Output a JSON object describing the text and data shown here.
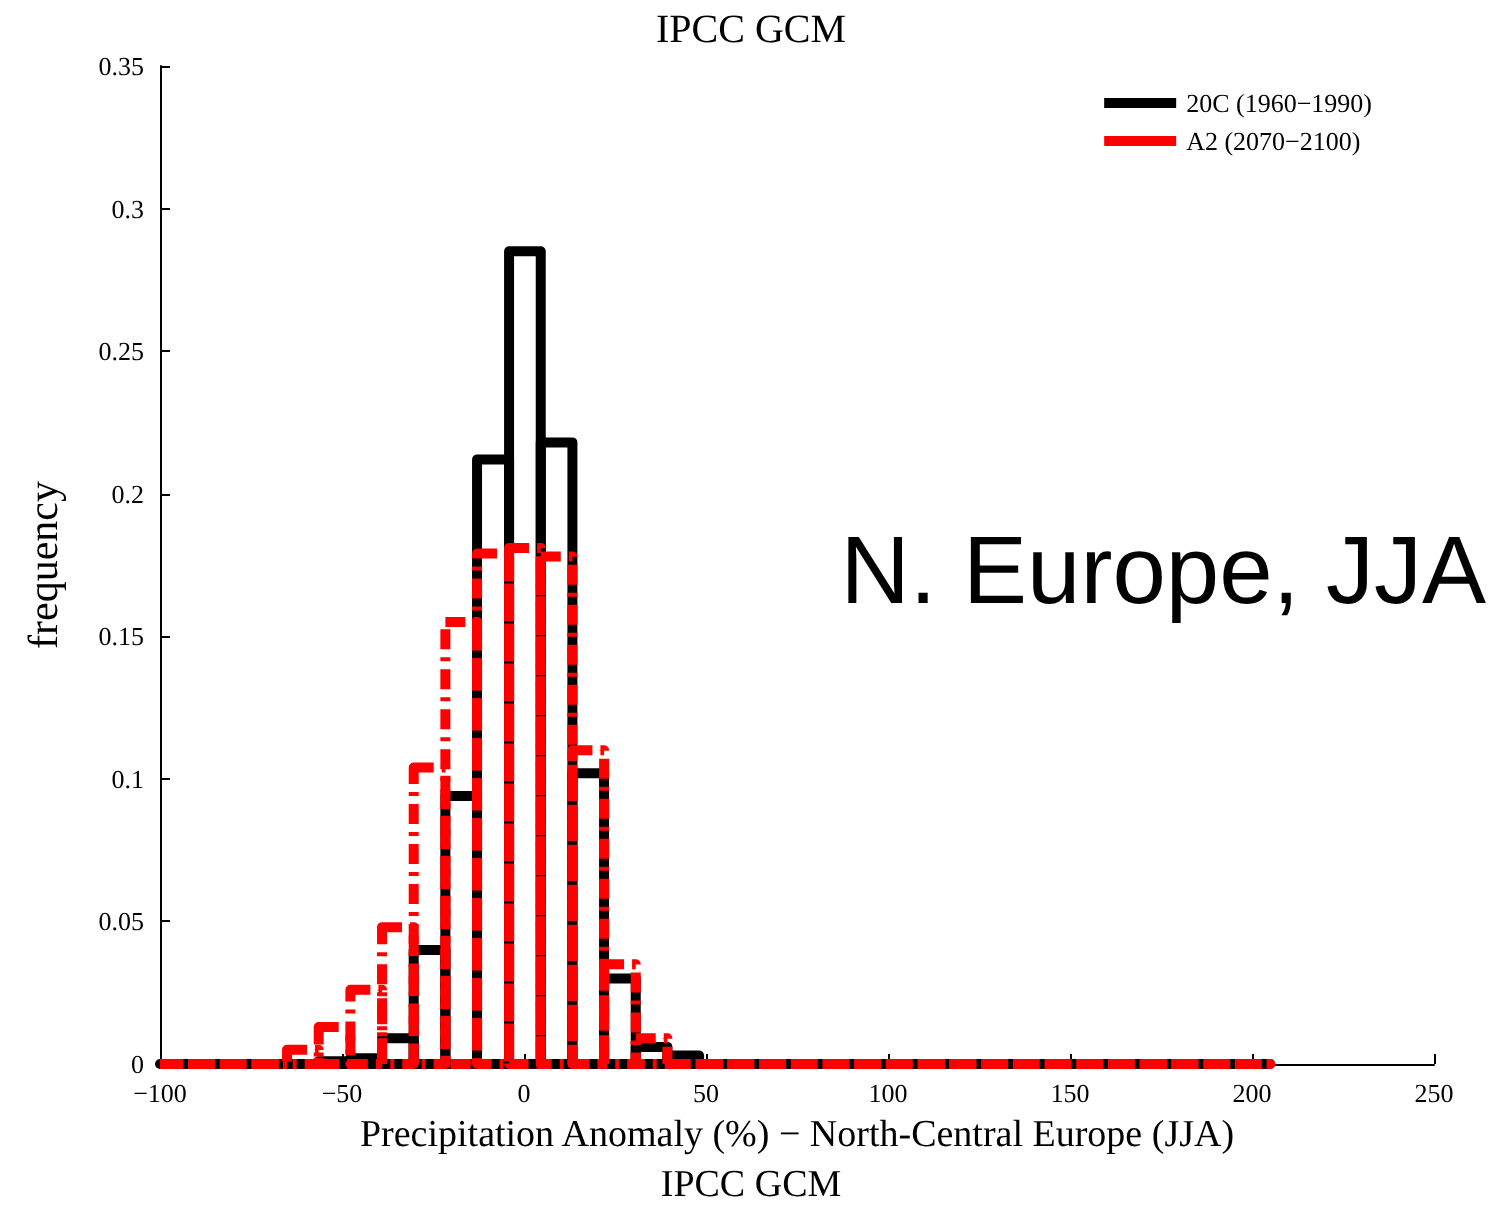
{
  "chart_data": {
    "type": "histogram",
    "title": "IPCC GCM",
    "xlabel": "Precipitation Anomaly (%) − North-Central Europe (JJA)",
    "ylabel": "frequency",
    "annotations": [
      "N. Europe, JJA",
      "IPCC GCM"
    ],
    "bins": [
      -100,
      -91.3,
      -82.6,
      -73.9,
      -65.1,
      -56.4,
      -47.7,
      -39.0,
      -30.3,
      -21.6,
      -12.9,
      -4.1,
      4.6,
      13.3,
      22.0,
      30.7,
      39.4,
      48.1,
      56.9,
      65.6,
      74.3,
      83.0,
      91.7,
      100.4,
      109.1,
      117.9,
      126.6,
      135.3,
      144.0,
      152.7,
      161.4,
      170.1,
      178.9,
      187.6,
      196.3,
      205
    ],
    "series": [
      {
        "name": "20C (1960−1990)",
        "color": "#000000",
        "line_style": "solid",
        "values": [
          0,
          0,
          0,
          0,
          0,
          0.001,
          0.002,
          0.009,
          0.04,
          0.094,
          0.212,
          0.285,
          0.218,
          0.102,
          0.03,
          0.006,
          0.003,
          0,
          0,
          0,
          0,
          0,
          0,
          0,
          0,
          0,
          0,
          0,
          0,
          0,
          0,
          0,
          0,
          0,
          0
        ]
      },
      {
        "name": "A2 (2070−2100)",
        "color": "#ff0000",
        "line_style": "dashed",
        "values": [
          0,
          0,
          0,
          0,
          0.005,
          0.013,
          0.026,
          0.048,
          0.104,
          0.155,
          0.179,
          0.181,
          0.178,
          0.11,
          0.035,
          0.009,
          0,
          0,
          0,
          0,
          0,
          0,
          0,
          0,
          0,
          0,
          0,
          0,
          0,
          0,
          0,
          0,
          0,
          0,
          0
        ]
      }
    ],
    "xlim": [
      -100,
      250
    ],
    "xticks": [
      -100,
      -50,
      0,
      50,
      100,
      150,
      200,
      250
    ],
    "ylim": [
      0,
      0.35
    ],
    "yticks": [
      0,
      0.05,
      0.1,
      0.15,
      0.2,
      0.25,
      0.3,
      0.35
    ],
    "grid": false,
    "legend": "top right"
  }
}
